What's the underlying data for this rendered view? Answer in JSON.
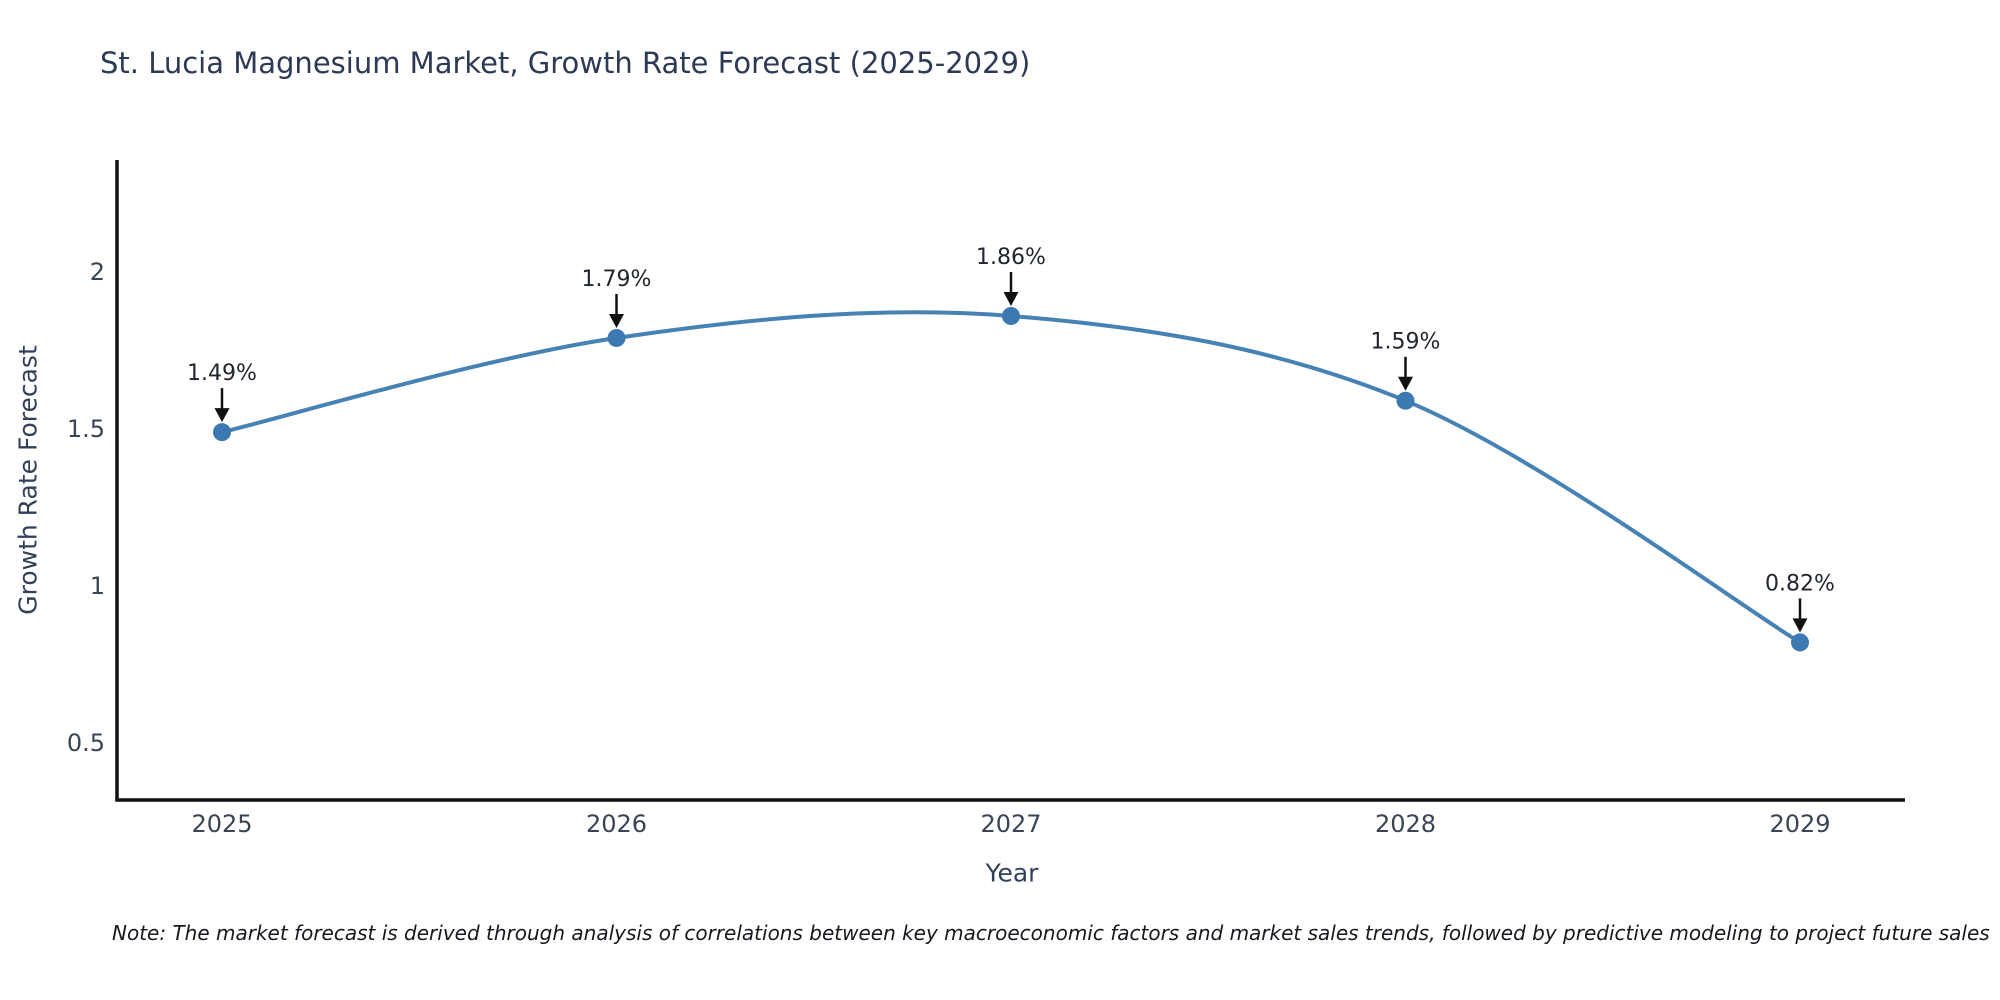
{
  "note": "Note: The market forecast is derived through analysis of correlations between key macroeconomic factors and market sales trends, followed by predictive modeling to project future sales",
  "chart_data": {
    "type": "line",
    "title": "St. Lucia Magnesium Market, Growth Rate Forecast (2025-2029)",
    "xlabel": "Year",
    "ylabel": "Growth Rate Forecast",
    "categories": [
      "2025",
      "2026",
      "2027",
      "2028",
      "2029"
    ],
    "series": [
      {
        "name": "Growth Rate Forecast",
        "values": [
          1.49,
          1.79,
          1.86,
          1.59,
          0.82
        ],
        "labels": [
          "1.49%",
          "1.79%",
          "1.86%",
          "1.59%",
          "0.82%"
        ]
      }
    ],
    "yticks": [
      0.5,
      1,
      1.5,
      2
    ],
    "ylim": [
      0.318,
      2.357
    ],
    "grid": false,
    "legend": false,
    "smooth": true,
    "marker": "circle",
    "annotation_style": "value label with downward arrow above each point",
    "colors": {
      "line": "#4682b4",
      "marker": "#3c79b2",
      "axis": "#111111",
      "title": "#2d3a55",
      "axis_label": "#33405a",
      "tick_label": "#3a4454",
      "annotation": "#21262e",
      "note": "#16181d"
    }
  }
}
